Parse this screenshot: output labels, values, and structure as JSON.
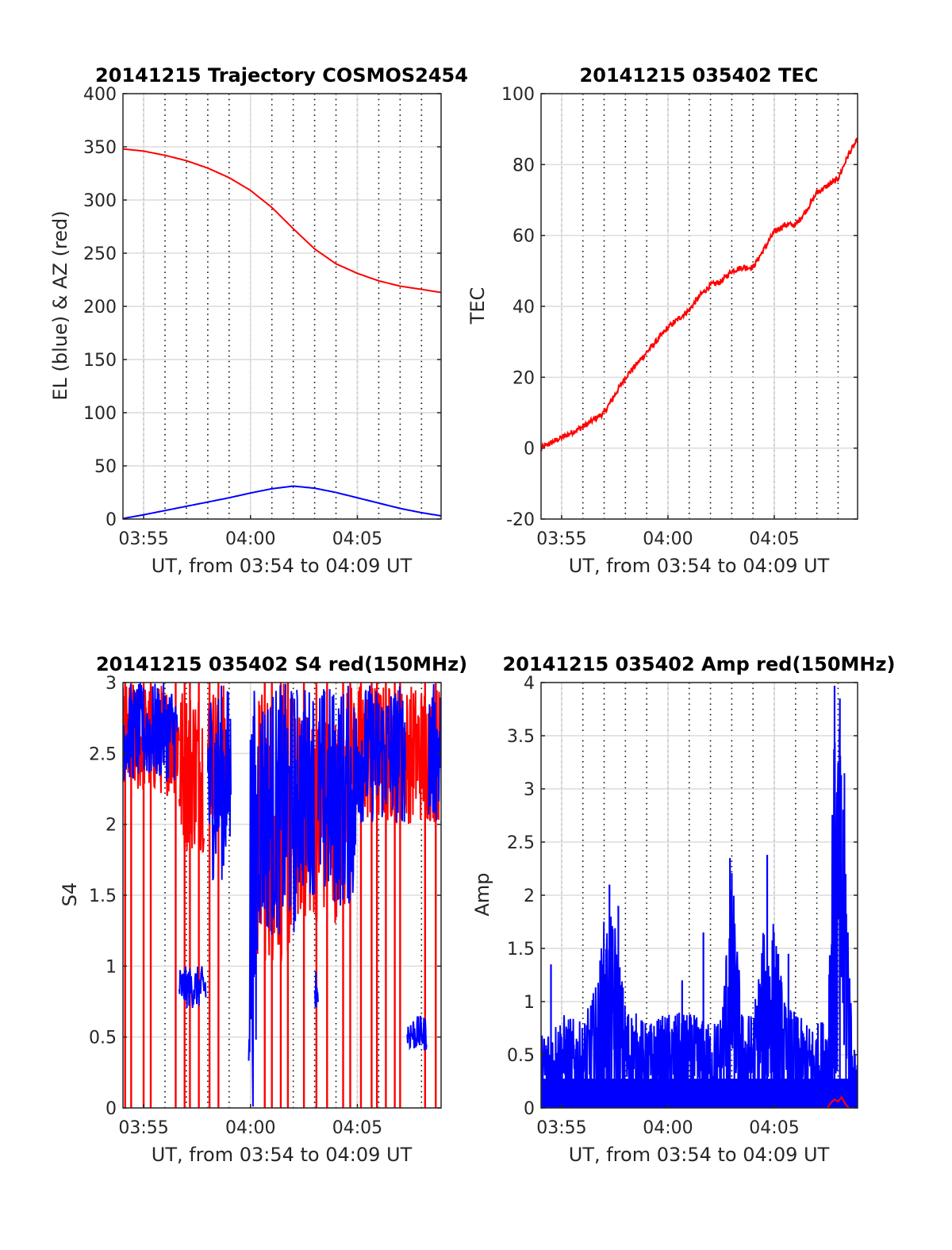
{
  "chart_data": [
    {
      "id": "traj",
      "type": "line",
      "title": "20141215 Trajectory COSMOS2454",
      "xlabel": "UT, from 03:54 to 04:09 UT",
      "ylabel": "EL (blue) & AZ (red)",
      "xlim": [
        "03:54:02",
        "04:08:55"
      ],
      "ylim": [
        0,
        400
      ],
      "yticks": [
        0,
        50,
        100,
        150,
        200,
        250,
        300,
        350,
        400
      ],
      "xticks": [
        "03:55",
        "04:00",
        "04:05"
      ],
      "grid": true,
      "minor_x_dotted_grid": true,
      "colors": {
        "EL": "#0000ff",
        "AZ": "#ff0000"
      },
      "series": [
        {
          "name": "EL",
          "color": "#0000ff",
          "x": [
            "03:54:02",
            "03:55:00",
            "03:56:00",
            "03:57:00",
            "03:58:00",
            "03:59:00",
            "04:00:00",
            "04:01:00",
            "04:02:00",
            "04:03:00",
            "04:04:00",
            "04:05:00",
            "04:06:00",
            "04:07:00",
            "04:08:00",
            "04:08:55"
          ],
          "y": [
            0.5,
            4,
            8,
            12,
            16,
            20,
            24.5,
            28.5,
            31,
            29,
            25,
            20,
            15,
            10,
            6,
            3
          ]
        },
        {
          "name": "AZ",
          "color": "#ff0000",
          "x": [
            "03:54:02",
            "03:55:00",
            "03:56:00",
            "03:57:00",
            "03:58:00",
            "03:59:00",
            "04:00:00",
            "04:01:00",
            "04:02:00",
            "04:03:00",
            "04:04:00",
            "04:05:00",
            "04:06:00",
            "04:07:00",
            "04:08:00",
            "04:08:55"
          ],
          "y": [
            348,
            346,
            342,
            337,
            330,
            321,
            309,
            293,
            273,
            254,
            240,
            231,
            224,
            219,
            216,
            213
          ]
        }
      ]
    },
    {
      "id": "tec",
      "type": "line",
      "title": "20141215 035402 TEC",
      "xlabel": "UT, from 03:54 to 04:09 UT",
      "ylabel": "TEC",
      "xlim": [
        "03:54:02",
        "04:08:55"
      ],
      "ylim": [
        -20,
        100
      ],
      "yticks": [
        -20,
        0,
        20,
        40,
        60,
        80,
        100
      ],
      "xticks": [
        "03:55",
        "04:00",
        "04:05"
      ],
      "grid": true,
      "minor_x_dotted_grid": true,
      "series": [
        {
          "name": "TEC",
          "color": "#ff0000",
          "x": [
            "03:54:02",
            "03:55:00",
            "03:56:00",
            "03:57:00",
            "03:57:30",
            "03:58:00",
            "03:59:00",
            "04:00:00",
            "04:01:00",
            "04:01:30",
            "04:02:00",
            "04:02:30",
            "04:03:00",
            "04:03:30",
            "04:04:00",
            "04:04:30",
            "04:05:00",
            "04:05:30",
            "04:06:00",
            "04:06:30",
            "04:07:00",
            "04:07:30",
            "04:08:00",
            "04:08:30",
            "04:08:55"
          ],
          "y": [
            0,
            3,
            6,
            10,
            15,
            20,
            27,
            34,
            39,
            43,
            46,
            47,
            50,
            51,
            51,
            56,
            61,
            63,
            63,
            67,
            72,
            74,
            76,
            83,
            87
          ]
        }
      ]
    },
    {
      "id": "s4",
      "type": "line",
      "title": "20141215 035402 S4 red(150MHz)",
      "xlabel": "UT, from 03:54 to 04:09 UT",
      "ylabel": "S4",
      "xlim": [
        "03:54:02",
        "04:08:55"
      ],
      "ylim": [
        0,
        3
      ],
      "yticks": [
        0,
        0.5,
        1,
        1.5,
        2,
        2.5,
        3
      ],
      "xticks": [
        "03:55",
        "04:00",
        "04:05"
      ],
      "grid": true,
      "minor_x_dotted_grid": true,
      "series": [
        {
          "name": "blue",
          "color": "#0000ff",
          "segments": [
            [
              "03:54:02",
              "03:56:35",
              2.3,
              3.0
            ],
            [
              "03:56:40",
              "03:57:55",
              0.7,
              1.0
            ],
            [
              "03:58:00",
              "03:59:05",
              1.6,
              3.0
            ],
            [
              "03:59:55",
              "04:00:20",
              0.0,
              3.0
            ],
            [
              "04:00:20",
              "04:02:10",
              1.2,
              3.0
            ],
            [
              "04:02:10",
              "04:03:00",
              1.5,
              3.0
            ],
            [
              "04:03:00",
              "04:03:10",
              0.7,
              1.0
            ],
            [
              "04:03:10",
              "04:05:00",
              1.4,
              3.0
            ],
            [
              "04:05:00",
              "04:07:15",
              2.0,
              3.0
            ],
            [
              "04:07:20",
              "04:08:15",
              0.4,
              0.65
            ],
            [
              "04:08:20",
              "04:08:55",
              2.0,
              3.0
            ]
          ]
        },
        {
          "name": "red",
          "color": "#ff0000",
          "segments": [
            [
              "03:54:02",
              "03:56:40",
              2.2,
              3.0
            ],
            [
              "03:56:40",
              "03:57:50",
              1.8,
              3.0
            ],
            [
              "03:58:00",
              "03:59:00",
              2.0,
              3.0
            ],
            [
              "04:00:20",
              "04:02:00",
              1.0,
              3.0
            ],
            [
              "04:02:00",
              "04:04:30",
              1.3,
              2.8
            ],
            [
              "04:04:30",
              "04:08:55",
              2.0,
              3.0
            ]
          ],
          "drops": [
            "03:54:08",
            "03:54:25",
            "03:55:00",
            "03:55:20",
            "03:56:30",
            "03:56:55",
            "03:57:10",
            "03:57:35",
            "03:58:05",
            "03:58:30",
            "04:00:40",
            "04:01:00",
            "04:01:25",
            "04:01:45",
            "04:02:30",
            "04:03:05",
            "04:03:35",
            "04:04:20",
            "04:04:40",
            "04:05:10",
            "04:05:40",
            "04:05:55",
            "04:06:20",
            "04:06:45",
            "04:07:00",
            "04:08:10",
            "04:08:40"
          ]
        }
      ]
    },
    {
      "id": "amp",
      "type": "line",
      "title": "20141215 035402 Amp red(150MHz)",
      "xlabel": "UT, from 03:54 to 04:09 UT",
      "ylabel": "Amp",
      "xlim": [
        "03:54:02",
        "04:08:55"
      ],
      "ylim": [
        0,
        4
      ],
      "yticks": [
        0,
        0.5,
        1,
        1.5,
        2,
        2.5,
        3,
        3.5,
        4
      ],
      "xticks": [
        "03:55",
        "04:00",
        "04:05"
      ],
      "grid": true,
      "minor_x_dotted_grid": true,
      "series": [
        {
          "name": "blue",
          "color": "#0000ff",
          "envelope_x": [
            "03:54:02",
            "03:55:00",
            "03:56:00",
            "03:56:40",
            "03:57:00",
            "03:57:30",
            "03:58:00",
            "03:59:00",
            "04:00:00",
            "04:01:00",
            "04:02:00",
            "04:02:30",
            "04:03:00",
            "04:03:30",
            "04:04:00",
            "04:04:30",
            "04:05:00",
            "04:05:30",
            "04:06:00",
            "04:06:30",
            "04:07:00",
            "04:07:30",
            "04:07:45",
            "04:08:00",
            "04:08:20",
            "04:08:40",
            "04:08:55"
          ],
          "envelope_y": [
            0.7,
            0.9,
            0.8,
            1.2,
            1.8,
            1.8,
            1.0,
            0.8,
            0.9,
            0.9,
            0.8,
            0.9,
            2.3,
            0.9,
            0.9,
            1.7,
            1.8,
            1.0,
            0.9,
            0.8,
            0.8,
            0.9,
            3.4,
            3.7,
            3.1,
            0.6,
            0.5
          ],
          "base": 0.5,
          "spikes": [
            [
              "03:54:30",
              1.35
            ],
            [
              "03:57:15",
              2.1
            ],
            [
              "03:57:40",
              1.9
            ],
            [
              "04:00:40",
              1.2
            ],
            [
              "04:01:40",
              1.65
            ],
            [
              "04:02:55",
              2.35
            ],
            [
              "04:04:40",
              2.38
            ],
            [
              "04:05:40",
              1.45
            ],
            [
              "04:07:50",
              3.97
            ],
            [
              "04:08:05",
              3.85
            ]
          ]
        },
        {
          "name": "red",
          "color": "#ff0000",
          "x": [
            "04:07:30",
            "04:07:40",
            "04:07:50",
            "04:08:00",
            "04:08:10",
            "04:08:20",
            "04:08:30"
          ],
          "y": [
            0.0,
            0.05,
            0.08,
            0.06,
            0.1,
            0.04,
            0.0
          ]
        }
      ]
    }
  ]
}
